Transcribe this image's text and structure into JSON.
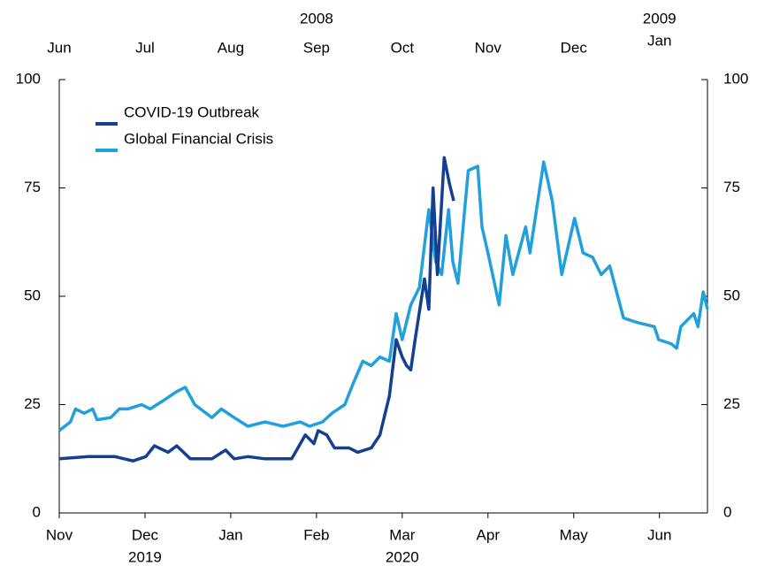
{
  "chart_data": {
    "type": "line",
    "series": [
      {
        "name": "COVID-19 Outbreak",
        "color": "#153f91",
        "x": [
          0,
          0.34,
          0.65,
          0.86,
          1.01,
          1.11,
          1.27,
          1.37,
          1.53,
          1.78,
          1.94,
          2.04,
          2.2,
          2.4,
          2.71,
          2.87,
          2.97,
          3.02,
          3.12,
          3.21,
          3.38,
          3.48,
          3.64,
          3.74,
          3.85,
          3.93,
          4.0,
          4.05,
          4.1,
          4.15,
          4.26,
          4.31,
          4.36,
          4.41,
          4.49,
          4.55,
          4.6
        ],
        "values": [
          12.5,
          13,
          13,
          12,
          13,
          15.5,
          14,
          15.5,
          12.5,
          12.5,
          14.5,
          12.5,
          13,
          12.5,
          12.5,
          18,
          16,
          19,
          18,
          15,
          15,
          14,
          15,
          18,
          27,
          40,
          36,
          34,
          33,
          40,
          54,
          47,
          75,
          55,
          82,
          76,
          72
        ]
      },
      {
        "name": "Global Financial Crisis",
        "color": "#22a0dc",
        "xaxis": "x2",
        "x": [
          0,
          0.13,
          0.19,
          0.29,
          0.39,
          0.44,
          0.6,
          0.7,
          0.8,
          0.96,
          1.06,
          1.22,
          1.37,
          1.47,
          1.58,
          1.78,
          1.89,
          2.04,
          2.2,
          2.4,
          2.61,
          2.81,
          2.92,
          3.07,
          3.18,
          3.33,
          3.43,
          3.54,
          3.64,
          3.74,
          3.85,
          3.93,
          4.0,
          4.1,
          4.2,
          4.31,
          4.39,
          4.46,
          4.54,
          4.59,
          4.65,
          4.77,
          4.88,
          4.93,
          5.0,
          5.13,
          5.21,
          5.29,
          5.44,
          5.49,
          5.65,
          5.75,
          5.86,
          6.01,
          6.11,
          6.22,
          6.32,
          6.42,
          6.58,
          6.73,
          6.94,
          6.99,
          7.14,
          7.2,
          7.25,
          7.4,
          7.45,
          7.51,
          7.56
        ],
        "values": [
          19,
          21,
          24,
          23,
          24,
          21.5,
          22,
          24,
          24,
          25,
          24,
          26,
          28,
          29,
          25,
          22,
          24,
          22,
          20,
          21,
          20,
          21,
          20,
          21,
          23,
          25,
          30,
          35,
          34,
          36,
          35,
          46,
          40,
          48,
          52,
          70,
          58,
          55,
          70,
          58,
          53,
          79,
          80,
          66,
          60,
          48,
          64,
          55,
          66,
          60,
          81,
          72,
          55,
          68,
          60,
          59,
          55,
          57,
          45,
          44,
          43,
          40,
          39,
          38,
          43,
          46,
          43,
          51,
          47
        ]
      }
    ],
    "xlim": [
      0,
      7.56
    ],
    "xticks": [
      {
        "value": 0,
        "label": "Nov"
      },
      {
        "value": 1,
        "label": "Dec",
        "year": "2019"
      },
      {
        "value": 2,
        "label": "Jan"
      },
      {
        "value": 3,
        "label": "Feb"
      },
      {
        "value": 4,
        "label": "Mar",
        "year": "2020"
      },
      {
        "value": 5,
        "label": "Apr"
      },
      {
        "value": 6,
        "label": "May"
      },
      {
        "value": 7,
        "label": "Jun"
      }
    ],
    "x2lim": [
      0,
      7.56
    ],
    "x2ticks": [
      {
        "value": 0,
        "label": "Jun"
      },
      {
        "value": 1,
        "label": "Jul"
      },
      {
        "value": 2,
        "label": "Aug"
      },
      {
        "value": 3,
        "label": "Sep",
        "year": "2008"
      },
      {
        "value": 4,
        "label": "Oct"
      },
      {
        "value": 5,
        "label": "Nov"
      },
      {
        "value": 6,
        "label": "Dec"
      },
      {
        "value": 7,
        "label": "Jan",
        "year": "2009"
      }
    ],
    "ylim": [
      0,
      100
    ],
    "yticks": [
      0,
      25,
      50,
      75,
      100
    ],
    "y2lim": [
      0,
      100
    ],
    "y2ticks": [
      0,
      25,
      50,
      75,
      100
    ],
    "legend": "top-left"
  }
}
